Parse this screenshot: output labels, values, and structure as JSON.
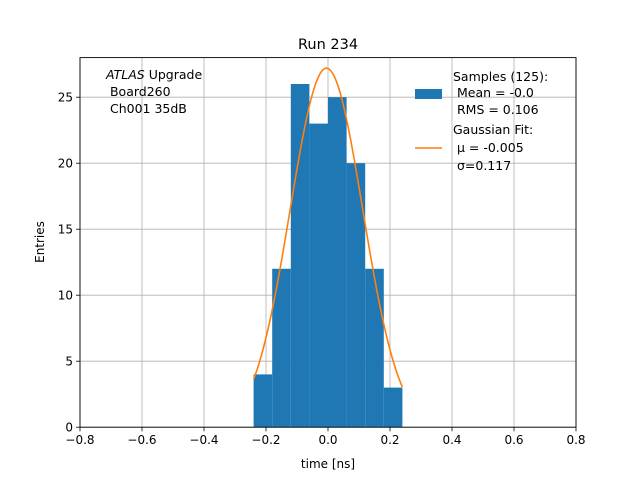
{
  "chart_data": {
    "type": "bar",
    "title": "Run 234",
    "xlabel": "time [ns]",
    "ylabel": "Entries",
    "xlim": [
      -0.8,
      0.8
    ],
    "ylim": [
      0,
      28
    ],
    "x_ticks": [
      -0.8,
      -0.6,
      -0.4,
      -0.2,
      0.0,
      0.2,
      0.4,
      0.6,
      0.8
    ],
    "x_tick_labels": [
      "−0.8",
      "−0.6",
      "−0.4",
      "−0.2",
      "0.0",
      "0.2",
      "0.4",
      "0.6",
      "0.8"
    ],
    "y_ticks": [
      0,
      5,
      10,
      15,
      20,
      25
    ],
    "y_tick_labels": [
      "0",
      "5",
      "10",
      "15",
      "20",
      "25"
    ],
    "grid": true,
    "annotation": {
      "prefix": "ATLAS",
      "suffix": " Upgrade",
      "line2": " Board260",
      "line3": " Ch001 35dB"
    },
    "histogram": {
      "color": "#1f77b4",
      "bin_edges": [
        -0.24,
        -0.18,
        -0.12,
        -0.06,
        0.0,
        0.06,
        0.12,
        0.18,
        0.24
      ],
      "counts": [
        4,
        12,
        26,
        23,
        25,
        20,
        12,
        3
      ],
      "legend_lines": [
        "Samples (125):",
        " Mean = -0.0",
        " RMS = 0.106"
      ]
    },
    "fit": {
      "type": "gaussian",
      "color": "#ff7f0e",
      "mu": -0.005,
      "sigma": 0.117,
      "amplitude": 27.2,
      "x_range": [
        -0.24,
        0.24
      ],
      "legend_lines": [
        "Gaussian Fit:",
        " μ = -0.005",
        " σ=0.117"
      ]
    },
    "legend_position": "top-right"
  }
}
